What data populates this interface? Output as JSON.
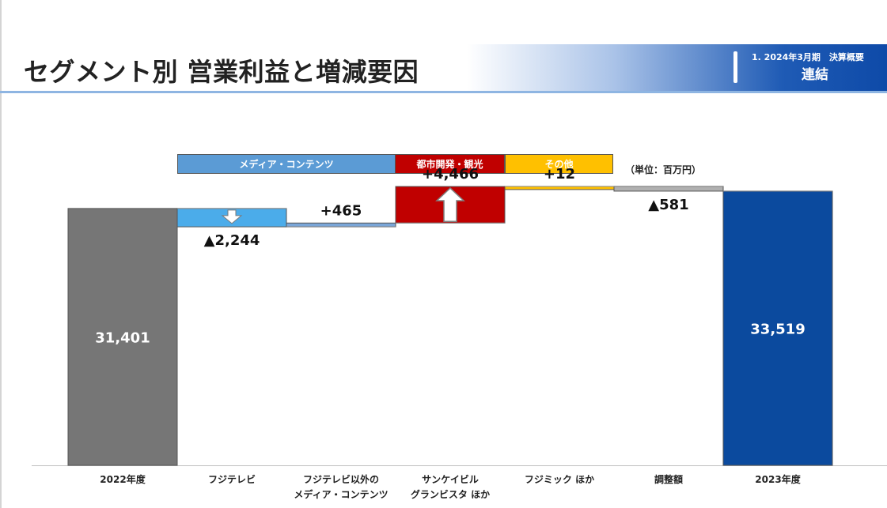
{
  "header": {
    "title": "セグメント別 営業利益と増減要因",
    "period": "1. 2024年3月期　決算概要",
    "scope": "連結"
  },
  "legend": [
    {
      "label": "メディア・コンテンツ",
      "color": "#5b9bd5"
    },
    {
      "label": "都市開発・観光",
      "color": "#c00000"
    },
    {
      "label": "その他",
      "color": "#ffc000"
    }
  ],
  "unit_label": "（単位：百万円）",
  "chart_data": {
    "type": "waterfall",
    "unit": "百万円",
    "categories": [
      [
        "2022年度"
      ],
      [
        "フジテレビ"
      ],
      [
        "フジテレビ以外の",
        "メディア・コンテンツ"
      ],
      [
        "サンケイビル",
        "グランビスタ ほか"
      ],
      [
        "フジミック ほか"
      ],
      [
        "調整額"
      ],
      [
        "2023年度"
      ]
    ],
    "steps": [
      {
        "kind": "total",
        "value": 31401,
        "label": "31,401",
        "color": "#767676"
      },
      {
        "kind": "delta",
        "value": -2244,
        "label": "▲2,244",
        "color": "#4bacea",
        "arrow": "down"
      },
      {
        "kind": "delta",
        "value": 465,
        "label": "+465",
        "color": "#7aa6d8"
      },
      {
        "kind": "delta",
        "value": 4466,
        "label": "+4,466",
        "color": "#c00000",
        "arrow": "up"
      },
      {
        "kind": "delta",
        "value": 12,
        "label": "+12",
        "color": "#ffc000"
      },
      {
        "kind": "delta",
        "value": -581,
        "label": "▲581",
        "color": "#b0b0b0"
      },
      {
        "kind": "total",
        "value": 33519,
        "label": "33,519",
        "color": "#0b4a9e"
      }
    ],
    "ylim": [
      0,
      35000
    ]
  }
}
